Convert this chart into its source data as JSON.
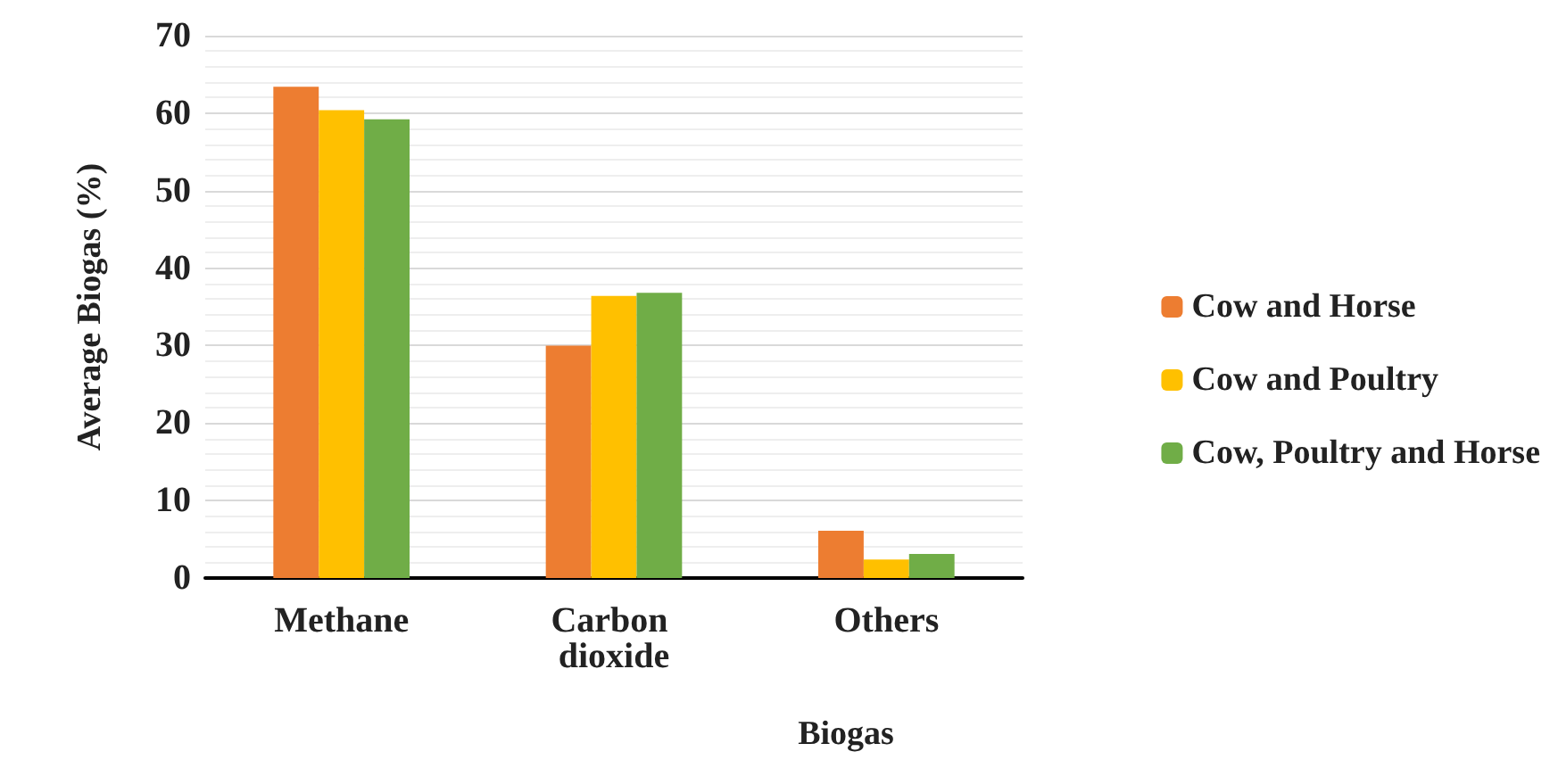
{
  "chart_data": {
    "type": "bar",
    "xlabel": "Biogas",
    "ylabel": "Average Biogas (%)",
    "categories": [
      "Methane",
      "Carbon dioxide",
      "Others"
    ],
    "series": [
      {
        "name": "Cow and Horse",
        "color": "#ed7d31",
        "values": [
          63.4,
          30.0,
          6.1
        ]
      },
      {
        "name": "Cow and Poultry",
        "color": "#ffc000",
        "values": [
          60.4,
          36.4,
          2.4
        ]
      },
      {
        "name": "Cow, Poultry and Horse",
        "color": "#70ad47",
        "values": [
          59.2,
          36.8,
          3.1
        ]
      }
    ],
    "ylim": [
      0,
      70
    ],
    "yticks": [
      0,
      10,
      20,
      30,
      40,
      50,
      60,
      70
    ],
    "grid": true,
    "legend": "right"
  }
}
